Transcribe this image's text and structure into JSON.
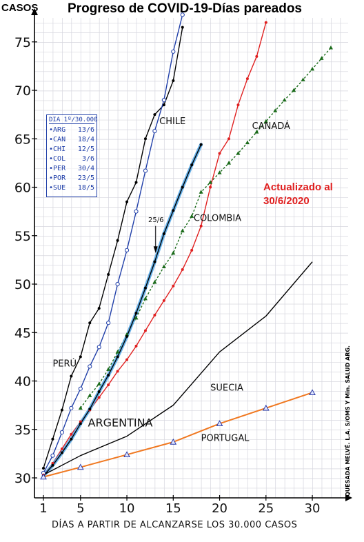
{
  "chart_data": {
    "type": "line",
    "title": "Progreso de COVID-19-Días pareados",
    "ylabel": "CASOS",
    "xlabel": "DÍAS A PARTIR DE ALCANZARSE LOS 30.000 CASOS",
    "xlim": [
      0,
      33
    ],
    "ylim": [
      29,
      78
    ],
    "x_ticks": [
      1,
      5,
      10,
      15,
      20,
      25,
      30
    ],
    "y_ticks": [
      30,
      35,
      40,
      45,
      50,
      55,
      60,
      65,
      70,
      75
    ],
    "annotation": "Actualizado al 30/6/2020",
    "marker_label": "25/6",
    "legend_title": "DIA 1º/30.000",
    "legend_entries": [
      {
        "code": "ARG",
        "date": "13/6"
      },
      {
        "code": "CAN",
        "date": "18/4"
      },
      {
        "code": "CHI",
        "date": "12/5"
      },
      {
        "code": "COL",
        "date": "3/6"
      },
      {
        "code": "PER",
        "date": "30/4"
      },
      {
        "code": "POR",
        "date": "23/5"
      },
      {
        "code": "SUE",
        "date": "18/5"
      }
    ],
    "credit": "QUESADA MELVÉ. L.A. S/OMS Y Min. SALUD ARG.",
    "series": [
      {
        "name": "PERÚ",
        "color": "#000000",
        "style": "solid",
        "marker": "dot",
        "x": [
          1,
          2,
          3,
          4,
          5,
          6,
          7,
          8,
          9,
          10,
          11,
          12,
          13,
          14,
          15,
          16
        ],
        "y": [
          31,
          34,
          37,
          40.5,
          42.5,
          46,
          47.5,
          51,
          54.5,
          58.5,
          60.5,
          65,
          67.5,
          68.5,
          71,
          76.5
        ]
      },
      {
        "name": "CHILE",
        "color": "#1f3ea8",
        "style": "solid",
        "marker": "circle",
        "x": [
          1,
          2,
          3,
          4,
          5,
          6,
          7,
          8,
          9,
          10,
          11,
          12,
          13,
          14,
          15,
          16
        ],
        "y": [
          30.5,
          32.3,
          34.7,
          37.2,
          39.2,
          41.5,
          43.5,
          46,
          50,
          53.5,
          57.5,
          61.7,
          65.8,
          69,
          74,
          77.8
        ]
      },
      {
        "name": "CANADÁ",
        "color": "#1b6b1b",
        "style": "dotted",
        "marker": "triangle",
        "x": [
          5,
          6,
          7,
          8,
          9,
          10,
          11,
          12,
          13,
          14,
          15,
          16,
          17,
          18,
          19,
          20,
          21,
          22,
          23,
          24,
          25,
          26,
          27,
          28,
          29,
          30,
          31,
          32
        ],
        "y": [
          37.2,
          38.5,
          39.7,
          41.2,
          43,
          44.8,
          46.5,
          48.5,
          50.2,
          51.8,
          53.2,
          55.5,
          57,
          59.5,
          60.5,
          61.5,
          62.5,
          63.5,
          64.6,
          65.7,
          66.8,
          67.9,
          69,
          70,
          71.1,
          72.2,
          73.3,
          74.4
        ]
      },
      {
        "name": "COLOMBIA",
        "color": "#e02020",
        "style": "solid",
        "marker": "dot",
        "x": [
          1,
          2,
          3,
          4,
          5,
          6,
          7,
          8,
          9,
          10,
          11,
          12,
          13,
          14,
          15,
          16,
          17,
          18,
          19,
          20,
          21,
          22,
          23,
          24,
          25
        ],
        "y": [
          30.3,
          31.5,
          33,
          34.5,
          35.8,
          37,
          38.3,
          39.6,
          41,
          42.2,
          43.6,
          45.2,
          46.8,
          48.3,
          49.8,
          51.5,
          53.5,
          56,
          60,
          63.5,
          65,
          68.5,
          71.2,
          73.5,
          77
        ]
      },
      {
        "name": "ARGENTINA",
        "color": "#000000",
        "style": "solid",
        "marker": "dot",
        "highlight": "#4aa3e6",
        "x": [
          1,
          2,
          3,
          4,
          5,
          6,
          7,
          8,
          9,
          10,
          11,
          12,
          13,
          14,
          15,
          16,
          17,
          18
        ],
        "y": [
          30.2,
          31.3,
          32.6,
          34,
          35.6,
          37.1,
          38.9,
          40.6,
          42.5,
          44.6,
          47,
          49.6,
          52.3,
          55.2,
          57.6,
          60,
          62.3,
          64.4
        ]
      },
      {
        "name": "SUECIA",
        "color": "#000000",
        "style": "solid",
        "marker": "none",
        "x": [
          1,
          5,
          10,
          15,
          20,
          25,
          30
        ],
        "y": [
          30.3,
          32.3,
          34.3,
          37.5,
          43,
          46.7,
          52.3
        ]
      },
      {
        "name": "PORTUGAL",
        "color": "#f07820",
        "style": "solid",
        "marker": "triangle",
        "x": [
          1,
          5,
          10,
          15,
          20,
          25,
          30
        ],
        "y": [
          30.1,
          31.1,
          32.4,
          33.7,
          35.6,
          37.2,
          38.8
        ]
      }
    ],
    "series_labels": [
      {
        "name": "CHILE",
        "x": 13.5,
        "y": 66.5
      },
      {
        "name": "CANADÁ",
        "x": 23.5,
        "y": 66
      },
      {
        "name": "COLOMBIA",
        "x": 17.2,
        "y": 56.5
      },
      {
        "name": "PERÚ",
        "x": 2,
        "y": 41.5
      },
      {
        "name": "SUECIA",
        "x": 19,
        "y": 39
      },
      {
        "name": "ARGENTINA",
        "x": 5.8,
        "y": 35.3
      },
      {
        "name": "PORTUGAL",
        "x": 18,
        "y": 33.8
      }
    ]
  }
}
